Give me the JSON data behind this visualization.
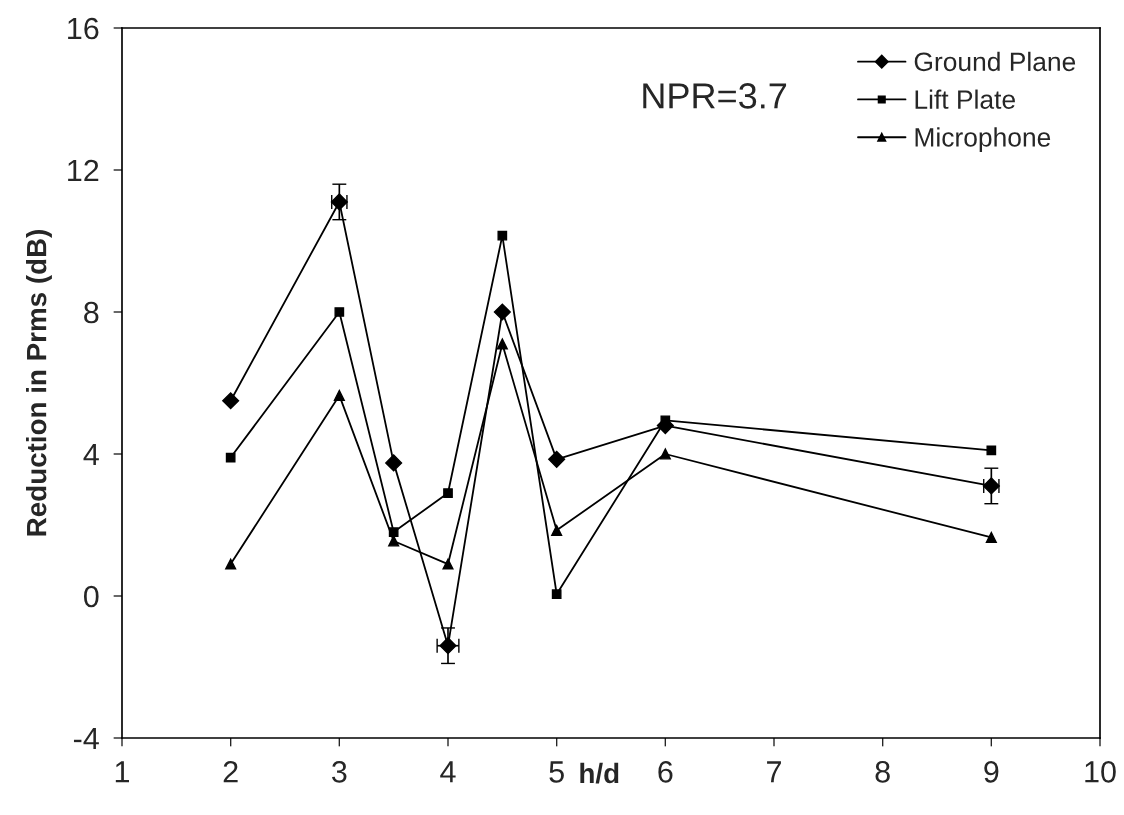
{
  "chart_data": {
    "type": "line",
    "xlabel": "h/d",
    "ylabel": "Reduction in Prms (dB)",
    "annotations": [
      "NPR=3.7"
    ],
    "x": [
      2,
      3,
      3.5,
      4,
      4.5,
      5,
      6,
      9
    ],
    "series": [
      {
        "name": "Ground Plane",
        "color": "#000000",
        "marker": "diamond",
        "values": [
          5.5,
          11.1,
          3.75,
          -1.4,
          8.0,
          3.85,
          4.8,
          3.1
        ],
        "errors": [
          null,
          0.5,
          null,
          0.5,
          null,
          null,
          null,
          0.5
        ],
        "xerrors": [
          null,
          0.07,
          null,
          0.1,
          null,
          null,
          null,
          0.07
        ]
      },
      {
        "name": "Lift Plate",
        "color": "#000000",
        "marker": "square",
        "values": [
          3.9,
          8.0,
          1.8,
          2.9,
          10.15,
          0.05,
          4.95,
          4.1
        ]
      },
      {
        "name": "Microphone",
        "color": "#000000",
        "marker": "triangle",
        "values": [
          0.9,
          5.65,
          1.55,
          0.9,
          7.1,
          1.85,
          4.0,
          1.65
        ]
      }
    ],
    "xlim": [
      1,
      10
    ],
    "xticks": [
      1,
      2,
      3,
      4,
      5,
      6,
      7,
      8,
      9,
      10
    ],
    "ylim": [
      -4,
      16
    ],
    "yticks": [
      -4,
      0,
      4,
      8,
      12,
      16
    ],
    "grid": false,
    "legend": "top right",
    "line_style": "solid"
  }
}
